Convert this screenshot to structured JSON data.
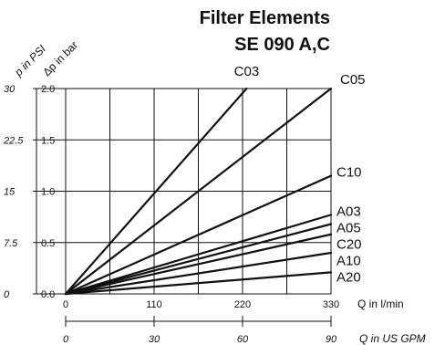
{
  "title_line1": "Filter Elements",
  "title_line2": "SE 090 A,C",
  "chart_data": {
    "type": "line",
    "x_axis": {
      "label": "Q in l/min",
      "ticks": [
        0,
        110,
        220,
        330
      ],
      "range": [
        0,
        330
      ]
    },
    "x_axis_secondary": {
      "label": "Q in US GPM",
      "ticks": [
        "0",
        "30",
        "60",
        "90"
      ],
      "range": [
        0,
        90
      ]
    },
    "y_axis": {
      "label": "Δp in bar",
      "ticks": [
        "0.0",
        "0.5",
        "1.0",
        "1.5",
        "2.0"
      ],
      "range": [
        0,
        2.0
      ]
    },
    "y_axis_secondary": {
      "label": "p in PSI",
      "ticks": [
        "0",
        "7.5",
        "15",
        "22.5",
        "30"
      ],
      "range": [
        0,
        30
      ]
    },
    "grid": true,
    "series": [
      {
        "name": "C03",
        "x": [
          0,
          225
        ],
        "y": [
          0,
          2.0
        ]
      },
      {
        "name": "C05",
        "x": [
          0,
          330
        ],
        "y": [
          0,
          2.0
        ]
      },
      {
        "name": "C10",
        "x": [
          0,
          330
        ],
        "y": [
          0,
          1.15
        ]
      },
      {
        "name": "A03",
        "x": [
          0,
          330
        ],
        "y": [
          0,
          0.77
        ]
      },
      {
        "name": "A05",
        "x": [
          0,
          330
        ],
        "y": [
          0,
          0.68
        ]
      },
      {
        "name": "C20",
        "x": [
          0,
          330
        ],
        "y": [
          0,
          0.58
        ]
      },
      {
        "name": "A10",
        "x": [
          0,
          330
        ],
        "y": [
          0,
          0.4
        ]
      },
      {
        "name": "A20",
        "x": [
          0,
          330
        ],
        "y": [
          0,
          0.21
        ]
      }
    ]
  }
}
